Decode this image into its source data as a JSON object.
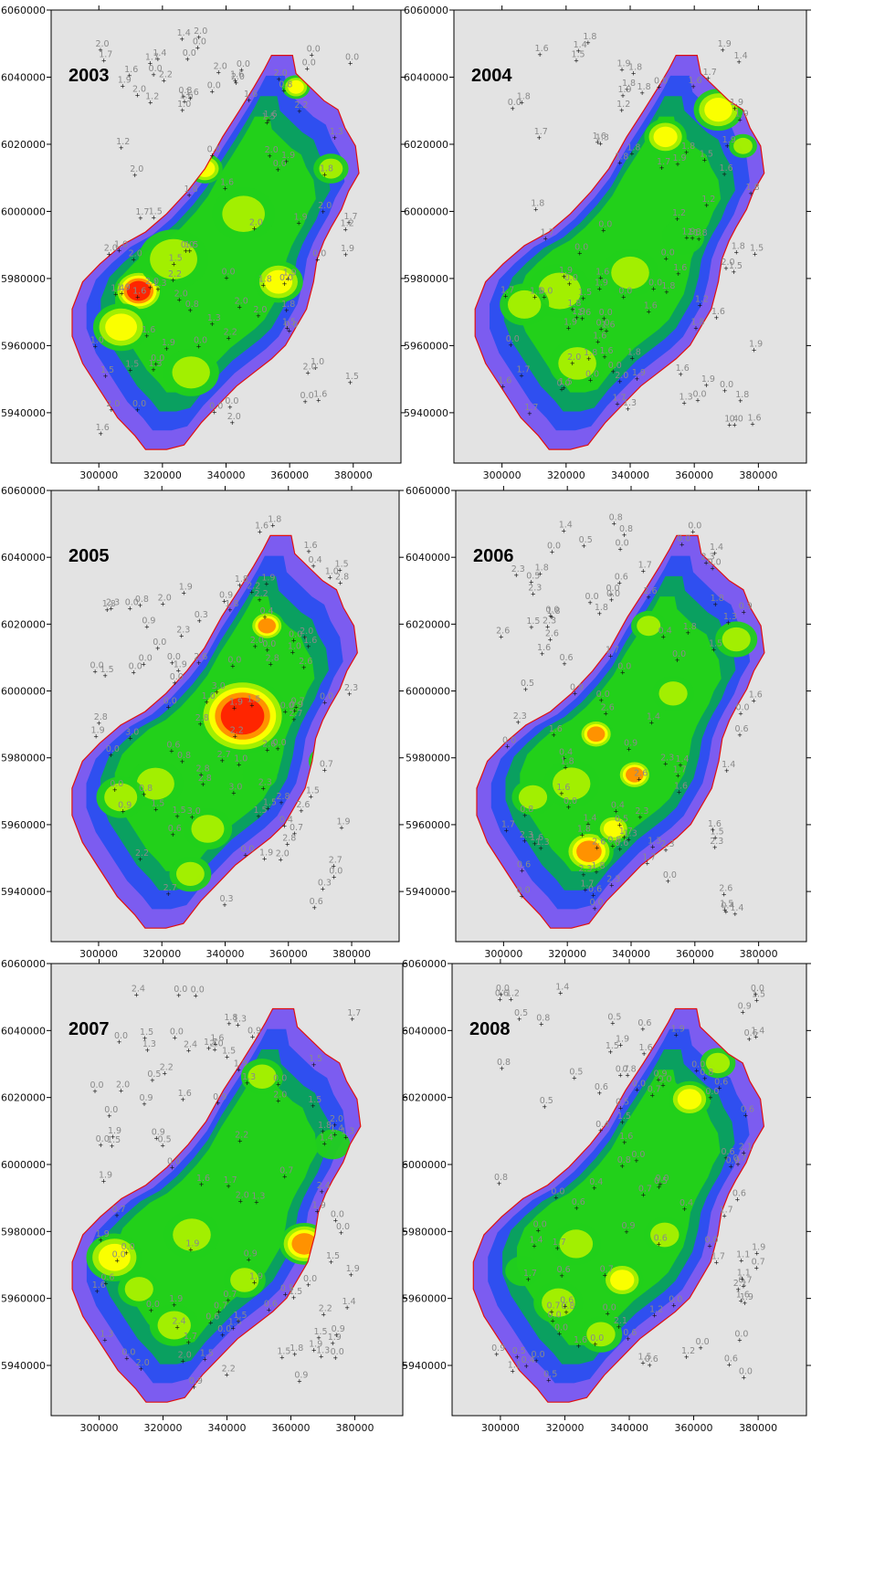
{
  "figure": {
    "background": "#e3e3e3",
    "boundary_color": "#e01010",
    "color_scale": [
      "#7c5cf0",
      "#2f4ff0",
      "#0aa060",
      "#22d01a",
      "#aaf000",
      "#ffff00",
      "#ff8c00",
      "#ff2000"
    ]
  },
  "chart_data": [
    {
      "type": "heatmap",
      "title": "2003",
      "xlim": [
        285000,
        395000
      ],
      "ylim": [
        5925000,
        6060000
      ],
      "x_ticks": [
        "300000",
        "320000",
        "340000",
        "360000",
        "380000"
      ],
      "y_ticks": [
        "5940000",
        "5960000",
        "5980000",
        "6000000",
        "6020000",
        "6040000",
        "6060000"
      ],
      "sample_values": [
        "0.0",
        "0.0",
        "0.0",
        "1.5",
        "2.0",
        "1.6",
        "1.7",
        "2.0",
        "1.5",
        "1.3",
        "2.2",
        "1.9",
        "1.0",
        "1.6",
        "2.0",
        "2.0",
        "1.8",
        "1.9",
        "2.0",
        "1.4",
        "1.6",
        "1.2",
        "0.8",
        "0.0",
        "0.0",
        "0.0"
      ]
    },
    {
      "type": "heatmap",
      "title": "2004",
      "xlim": [
        285000,
        395000
      ],
      "ylim": [
        5925000,
        6060000
      ],
      "x_ticks": [
        "300000",
        "320000",
        "340000",
        "360000",
        "380000"
      ],
      "y_ticks": [
        "5940000",
        "5960000",
        "5980000",
        "6000000",
        "6020000",
        "6040000",
        "6060000"
      ],
      "sample_values": [
        "0.0",
        "0.0",
        "0.0",
        "1.9",
        "1.8",
        "1.8",
        "1.8",
        "1.7",
        "1.6",
        "1.6",
        "1.9",
        "1.2",
        "1.9",
        "1.5",
        "1.8",
        "1.6",
        "1.7",
        "2.0",
        "1.5",
        "1.3",
        "1.9",
        "1.6",
        "1.4",
        "1.8",
        "0.0",
        "0.0"
      ]
    },
    {
      "type": "heatmap",
      "title": "2005",
      "xlim": [
        285000,
        395000
      ],
      "ylim": [
        5925000,
        6060000
      ],
      "x_ticks": [
        "300000",
        "320000",
        "340000",
        "360000",
        "380000"
      ],
      "y_ticks": [
        "5940000",
        "5960000",
        "5980000",
        "6000000",
        "6020000",
        "6040000",
        "6060000"
      ],
      "sample_values": [
        "0.0",
        "0.0",
        "0.0",
        "2.7",
        "1.5",
        "1.8",
        "2.8",
        "2.2",
        "2.8",
        "3.0",
        "2.3",
        "2.6",
        "0.9",
        "1.0",
        "1.9",
        "1.5",
        "2.0",
        "1.6",
        "0.8",
        "1.9",
        "0.7",
        "0.4",
        "0.3",
        "0.6",
        "0.0",
        "0.0"
      ]
    },
    {
      "type": "heatmap",
      "title": "2006",
      "xlim": [
        285000,
        395000
      ],
      "ylim": [
        5925000,
        6060000
      ],
      "x_ticks": [
        "300000",
        "320000",
        "340000",
        "360000",
        "380000"
      ],
      "y_ticks": [
        "5940000",
        "5960000",
        "5980000",
        "6000000",
        "6020000",
        "6040000",
        "6060000"
      ],
      "sample_values": [
        "0.0",
        "0.0",
        "0.0",
        "2.3",
        "2.3",
        "2.6",
        "0.8",
        "0.5",
        "0.4",
        "1.4",
        "1.8",
        "1.5",
        "1.6",
        "1.7",
        "1.3",
        "1.8",
        "2.3",
        "2.6",
        "1.7",
        "1.6",
        "1.4",
        "0.9",
        "0.6",
        "0.6",
        "0.0",
        "0.0"
      ]
    },
    {
      "type": "heatmap",
      "title": "2007",
      "xlim": [
        285000,
        395000
      ],
      "ylim": [
        5925000,
        6060000
      ],
      "x_ticks": [
        "300000",
        "320000",
        "340000",
        "360000",
        "380000"
      ],
      "y_ticks": [
        "5940000",
        "5960000",
        "5980000",
        "6000000",
        "6020000",
        "6040000",
        "6060000"
      ],
      "sample_values": [
        "0.0",
        "0.0",
        "0.0",
        "1.5",
        "1.5",
        "1.3",
        "0.9",
        "0.9",
        "0.7",
        "1.9",
        "1.6",
        "1.5",
        "1.9",
        "2.0",
        "1.7",
        "2.4",
        "2.2",
        "2.0",
        "1.8",
        "1.9",
        "1.4",
        "0.5",
        "0.6",
        "1.3",
        "0.0",
        "0.0"
      ]
    },
    {
      "type": "heatmap",
      "title": "2008",
      "xlim": [
        285000,
        395000
      ],
      "ylim": [
        5925000,
        6060000
      ],
      "x_ticks": [
        "300000",
        "320000",
        "340000",
        "360000",
        "380000"
      ],
      "y_ticks": [
        "5940000",
        "5960000",
        "5980000",
        "6000000",
        "6020000",
        "6040000",
        "6060000"
      ],
      "sample_values": [
        "0.0",
        "0.0",
        "0.0",
        "0.4",
        "0.6",
        "0.7",
        "0.7",
        "0.5",
        "0.6",
        "0.8",
        "0.5",
        "0.6",
        "0.9",
        "1.7",
        "1.5",
        "1.6",
        "1.9",
        "2.1",
        "1.2",
        "1.4",
        "1.1",
        "0.8",
        "0.6",
        "0.0",
        "0.0",
        "0.0"
      ]
    }
  ]
}
